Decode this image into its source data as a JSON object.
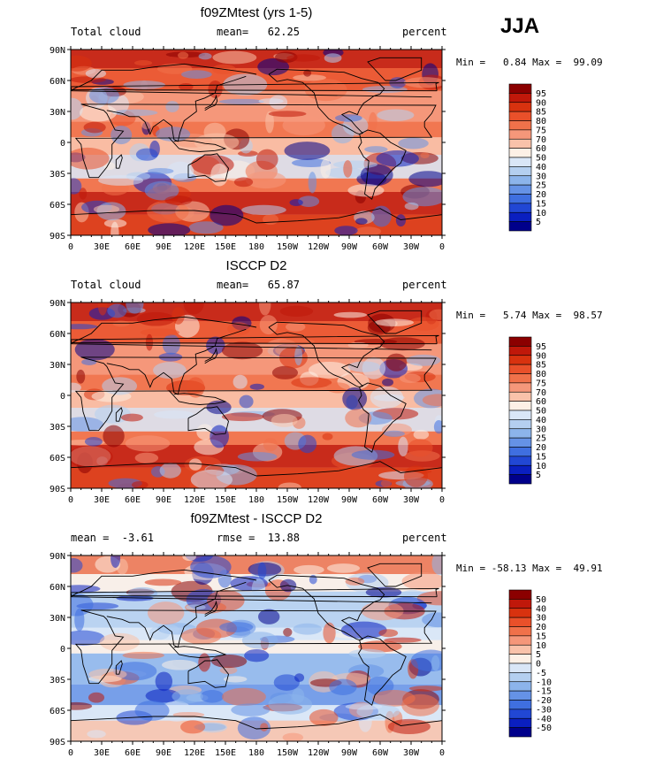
{
  "season": "JJA",
  "chart_data": [
    {
      "type": "heatmap",
      "title": "f09ZMtest (yrs 1-5)",
      "variable": "Total cloud",
      "units": "percent",
      "summary_label": "mean=",
      "summary_value": "62.25",
      "extra_label": "",
      "extra_value": "",
      "min_label": "Min =",
      "min": "0.84",
      "max_label": "Max =",
      "max": "99.09",
      "levels": [
        "95",
        "90",
        "85",
        "80",
        "75",
        "70",
        "60",
        "50",
        "40",
        "30",
        "25",
        "20",
        "15",
        "10",
        "5"
      ],
      "colors": [
        "#8b0000",
        "#c0180a",
        "#d8320f",
        "#e9502a",
        "#f0714a",
        "#f5977a",
        "#f9c2aa",
        "#fdf0e6",
        "#d9e6f7",
        "#b4cff0",
        "#8cb4eb",
        "#6592e6",
        "#3f6fe0",
        "#2147d4",
        "#0a1fc0",
        "#00008b"
      ],
      "xticks": [
        "0",
        "30E",
        "60E",
        "90E",
        "120E",
        "150E",
        "180",
        "150W",
        "120W",
        "90W",
        "60W",
        "30W",
        "0"
      ],
      "yticks": [
        "90N",
        "60N",
        "30N",
        "0",
        "30S",
        "60S",
        "90S"
      ]
    },
    {
      "type": "heatmap",
      "title": "ISCCP D2",
      "variable": "Total cloud",
      "units": "percent",
      "summary_label": "mean=",
      "summary_value": "65.87",
      "extra_label": "",
      "extra_value": "",
      "min_label": "Min =",
      "min": "5.74",
      "max_label": "Max =",
      "max": "98.57",
      "levels": [
        "95",
        "90",
        "85",
        "80",
        "75",
        "70",
        "60",
        "50",
        "40",
        "30",
        "25",
        "20",
        "15",
        "10",
        "5"
      ],
      "colors": [
        "#8b0000",
        "#c0180a",
        "#d8320f",
        "#e9502a",
        "#f0714a",
        "#f5977a",
        "#f9c2aa",
        "#fdf0e6",
        "#d9e6f7",
        "#b4cff0",
        "#8cb4eb",
        "#6592e6",
        "#3f6fe0",
        "#2147d4",
        "#0a1fc0",
        "#00008b"
      ],
      "xticks": [
        "0",
        "30E",
        "60E",
        "90E",
        "120E",
        "150E",
        "180",
        "150W",
        "120W",
        "90W",
        "60W",
        "30W",
        "0"
      ],
      "yticks": [
        "90N",
        "60N",
        "30N",
        "0",
        "30S",
        "60S",
        "90S"
      ]
    },
    {
      "type": "heatmap",
      "title": "f09ZMtest - ISCCP D2",
      "variable": "",
      "units": "percent",
      "summary_label": "mean =",
      "summary_value": "-3.61",
      "extra_label": "rmse =",
      "extra_value": "13.88",
      "min_label": "Min =",
      "min": "-58.13",
      "max_label": "Max =",
      "max": "49.91",
      "levels": [
        "50",
        "40",
        "30",
        "20",
        "15",
        "10",
        "5",
        "0",
        "-5",
        "-10",
        "-15",
        "-20",
        "-30",
        "-40",
        "-50"
      ],
      "colors": [
        "#8b0000",
        "#c0180a",
        "#d8320f",
        "#e9502a",
        "#f0714a",
        "#f5977a",
        "#f9c2aa",
        "#fdf0e6",
        "#d9e6f7",
        "#b4cff0",
        "#8cb4eb",
        "#6592e6",
        "#3f6fe0",
        "#2147d4",
        "#0a1fc0",
        "#00008b"
      ],
      "xticks": [
        "0",
        "30E",
        "60E",
        "90E",
        "120E",
        "150E",
        "180",
        "150W",
        "120W",
        "90W",
        "60W",
        "30W",
        "0"
      ],
      "yticks": [
        "90N",
        "60N",
        "30N",
        "0",
        "30S",
        "60S",
        "90S"
      ]
    }
  ]
}
